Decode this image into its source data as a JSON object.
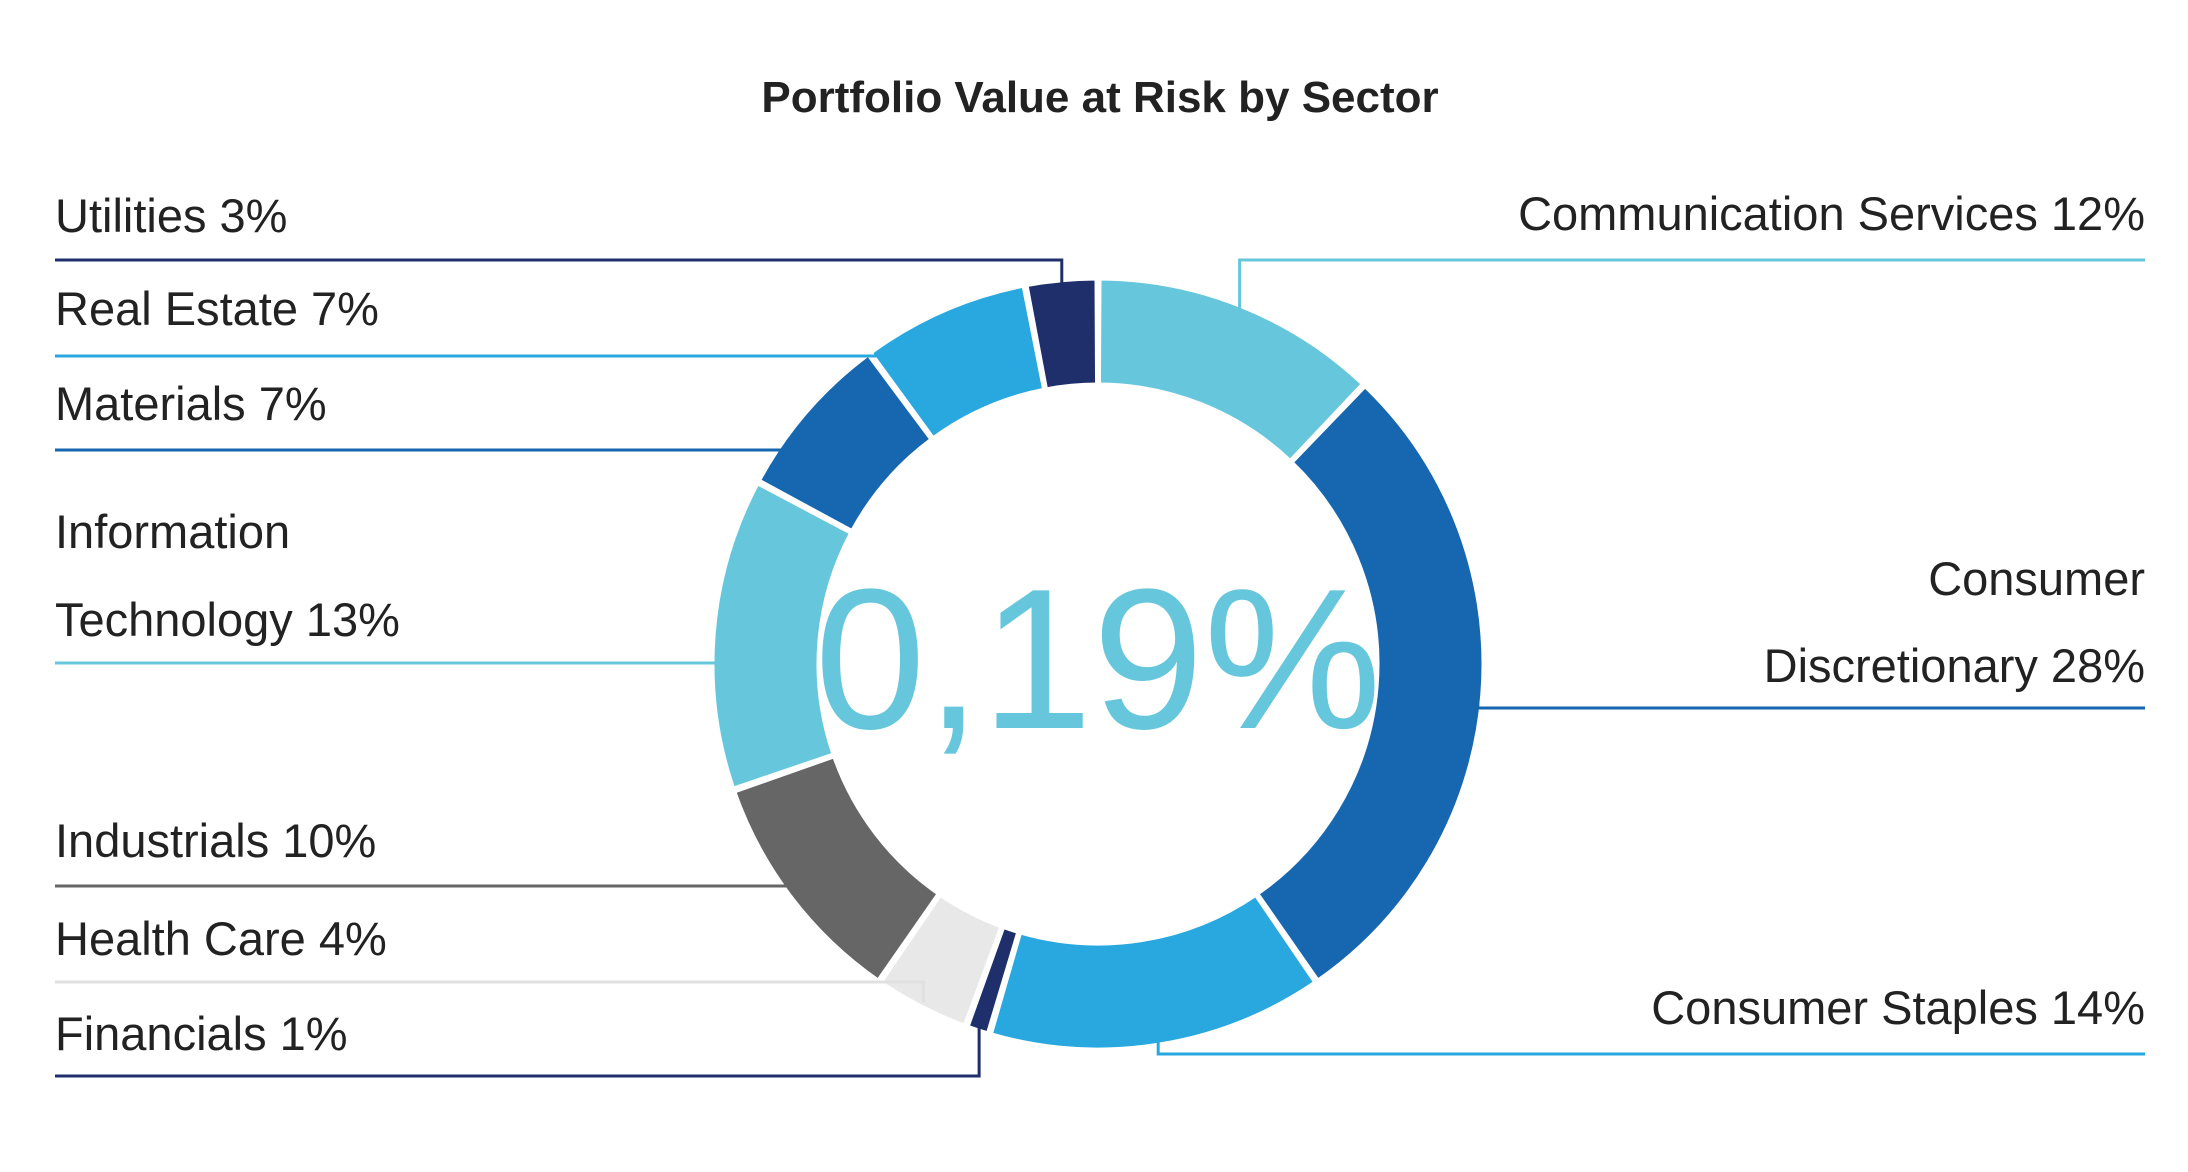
{
  "chart_data": {
    "type": "pie",
    "subtype": "donut",
    "title": "Portfolio Value at Risk by Sector",
    "center_value": "0,19%",
    "value_unit": "%",
    "slices": [
      {
        "name": "Communication Services",
        "value": 12,
        "color": "#66c7dc",
        "label_lines": [
          "Communication Services 12%"
        ]
      },
      {
        "name": "Consumer Discretionary",
        "value": 28,
        "color": "#1666b0",
        "label_lines": [
          "Consumer",
          "Discretionary 28%"
        ]
      },
      {
        "name": "Consumer Staples",
        "value": 14,
        "color": "#29a8e0",
        "label_lines": [
          "Consumer Staples 14%"
        ]
      },
      {
        "name": "Financials",
        "value": 1,
        "color": "#1e2f6b",
        "label_lines": [
          "Financials 1%"
        ]
      },
      {
        "name": "Health Care",
        "value": 4,
        "color": "#e8e8e8",
        "label_lines": [
          "Health Care 4%"
        ]
      },
      {
        "name": "Industrials",
        "value": 10,
        "color": "#666666",
        "label_lines": [
          "Industrials 10%"
        ]
      },
      {
        "name": "Information Technology",
        "value": 13,
        "color": "#66c7dc",
        "label_lines": [
          "Information",
          "Technology 13%"
        ]
      },
      {
        "name": "Materials",
        "value": 7,
        "color": "#1666b0",
        "label_lines": [
          "Materials 7%"
        ]
      },
      {
        "name": "Real Estate",
        "value": 7,
        "color": "#29a8e0",
        "label_lines": [
          "Real Estate 7%"
        ]
      },
      {
        "name": "Utilities",
        "value": 3,
        "color": "#1e2f6b",
        "label_lines": [
          "Utilities 3%"
        ]
      }
    ]
  }
}
